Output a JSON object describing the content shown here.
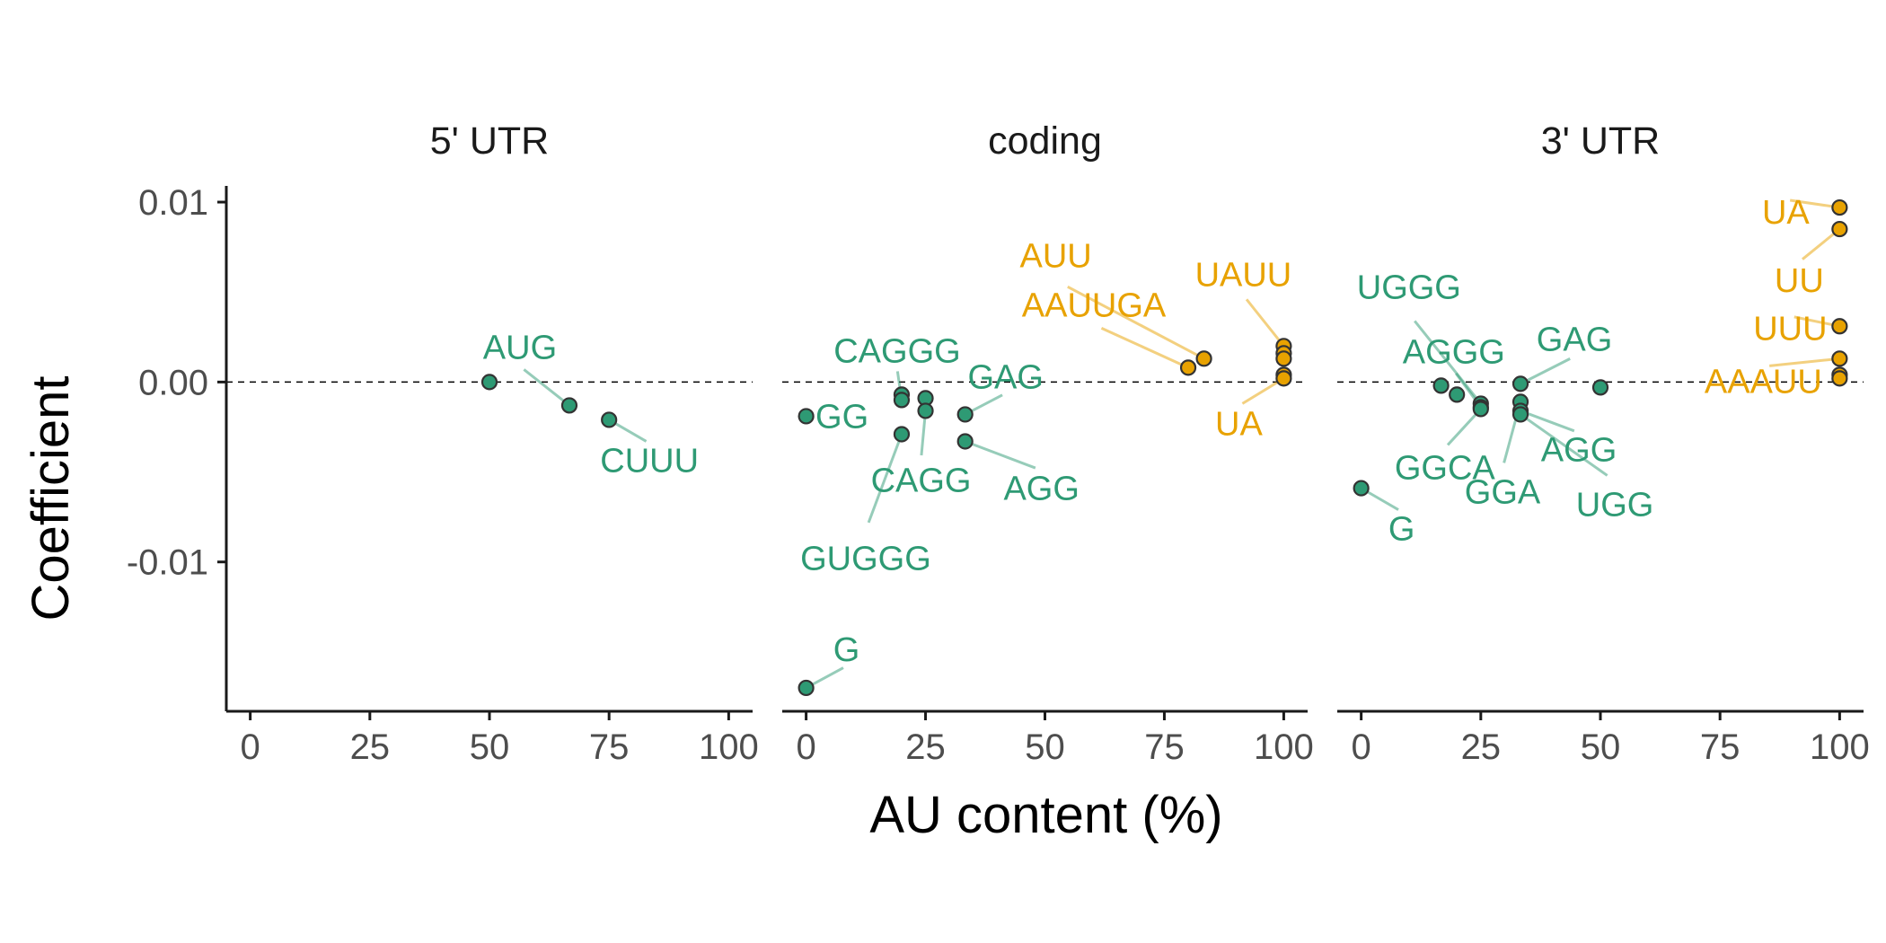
{
  "chart_data": {
    "type": "scatter",
    "xlabel": "AU content (%)",
    "ylabel": "Coefficient",
    "xlim": [
      -5,
      105
    ],
    "ylim": [
      -0.0183,
      0.0109
    ],
    "x_ticks": [
      0,
      25,
      50,
      75,
      100
    ],
    "x_tick_labels": [
      "0",
      "25",
      "50",
      "75",
      "100"
    ],
    "y_ticks": [
      0.01,
      0.0,
      -0.01
    ],
    "y_tick_labels": [
      "0.01",
      "0.00",
      "-0.01"
    ],
    "reference_line": {
      "y": 0,
      "style": "dashed"
    },
    "grid": false,
    "legend": "none",
    "colors": {
      "group_a": "#2e9a74",
      "group_b": "#e8a200",
      "point_border": "#333333",
      "axis": "#1a1a1a"
    },
    "panels": [
      {
        "title": "5' UTR",
        "points": [
          {
            "x": 50,
            "y": 0.0,
            "group": "group_a",
            "label": ""
          },
          {
            "x": 66.7,
            "y": -0.0013,
            "group": "group_a",
            "label": "AUG"
          },
          {
            "x": 75,
            "y": -0.0021,
            "group": "group_a",
            "label": "CUUU"
          }
        ]
      },
      {
        "title": "coding",
        "points": [
          {
            "x": 0,
            "y": -0.0019,
            "group": "group_a",
            "label": "GG"
          },
          {
            "x": 0,
            "y": -0.017,
            "group": "group_a",
            "label": "G"
          },
          {
            "x": 20,
            "y": -0.0007,
            "group": "group_a",
            "label": ""
          },
          {
            "x": 20,
            "y": -0.001,
            "group": "group_a",
            "label": "CAGGG"
          },
          {
            "x": 20,
            "y": -0.0029,
            "group": "group_a",
            "label": "GUGGG"
          },
          {
            "x": 25,
            "y": -0.0009,
            "group": "group_a",
            "label": ""
          },
          {
            "x": 25,
            "y": -0.0016,
            "group": "group_a",
            "label": "CAGG"
          },
          {
            "x": 33.3,
            "y": -0.0018,
            "group": "group_a",
            "label": "GAG"
          },
          {
            "x": 33.3,
            "y": -0.0033,
            "group": "group_a",
            "label": "AGG"
          },
          {
            "x": 80,
            "y": 0.0008,
            "group": "group_b",
            "label": "AAUUGA"
          },
          {
            "x": 83.3,
            "y": 0.0013,
            "group": "group_b",
            "label": "AUU"
          },
          {
            "x": 100,
            "y": 0.002,
            "group": "group_b",
            "label": "UAUU"
          },
          {
            "x": 100,
            "y": 0.0016,
            "group": "group_b",
            "label": ""
          },
          {
            "x": 100,
            "y": 0.0013,
            "group": "group_b",
            "label": ""
          },
          {
            "x": 100,
            "y": 0.0004,
            "group": "group_b",
            "label": ""
          },
          {
            "x": 100,
            "y": 0.0002,
            "group": "group_b",
            "label": "UA"
          }
        ]
      },
      {
        "title": "3' UTR",
        "points": [
          {
            "x": 0,
            "y": -0.0059,
            "group": "group_a",
            "label": "G"
          },
          {
            "x": 16.7,
            "y": -0.0002,
            "group": "group_a",
            "label": ""
          },
          {
            "x": 20,
            "y": -0.0007,
            "group": "group_a",
            "label": ""
          },
          {
            "x": 25,
            "y": -0.0012,
            "group": "group_a",
            "label": "UGGG"
          },
          {
            "x": 25,
            "y": -0.0014,
            "group": "group_a",
            "label": "AGGG"
          },
          {
            "x": 25,
            "y": -0.0015,
            "group": "group_a",
            "label": "GGCA"
          },
          {
            "x": 33.3,
            "y": -0.0001,
            "group": "group_a",
            "label": "GAG"
          },
          {
            "x": 33.3,
            "y": -0.0011,
            "group": "group_a",
            "label": "GGA"
          },
          {
            "x": 33.3,
            "y": -0.0016,
            "group": "group_a",
            "label": "AGG"
          },
          {
            "x": 33.3,
            "y": -0.0018,
            "group": "group_a",
            "label": "UGG"
          },
          {
            "x": 50,
            "y": -0.0003,
            "group": "group_a",
            "label": ""
          },
          {
            "x": 100,
            "y": 0.0097,
            "group": "group_b",
            "label": "UA"
          },
          {
            "x": 100,
            "y": 0.0085,
            "group": "group_b",
            "label": "UU"
          },
          {
            "x": 100,
            "y": 0.0031,
            "group": "group_b",
            "label": "UUU"
          },
          {
            "x": 100,
            "y": 0.0013,
            "group": "group_b",
            "label": "AAAUU"
          },
          {
            "x": 100,
            "y": 0.0004,
            "group": "group_b",
            "label": ""
          },
          {
            "x": 100,
            "y": 0.0002,
            "group": "group_b",
            "label": ""
          }
        ]
      }
    ]
  }
}
